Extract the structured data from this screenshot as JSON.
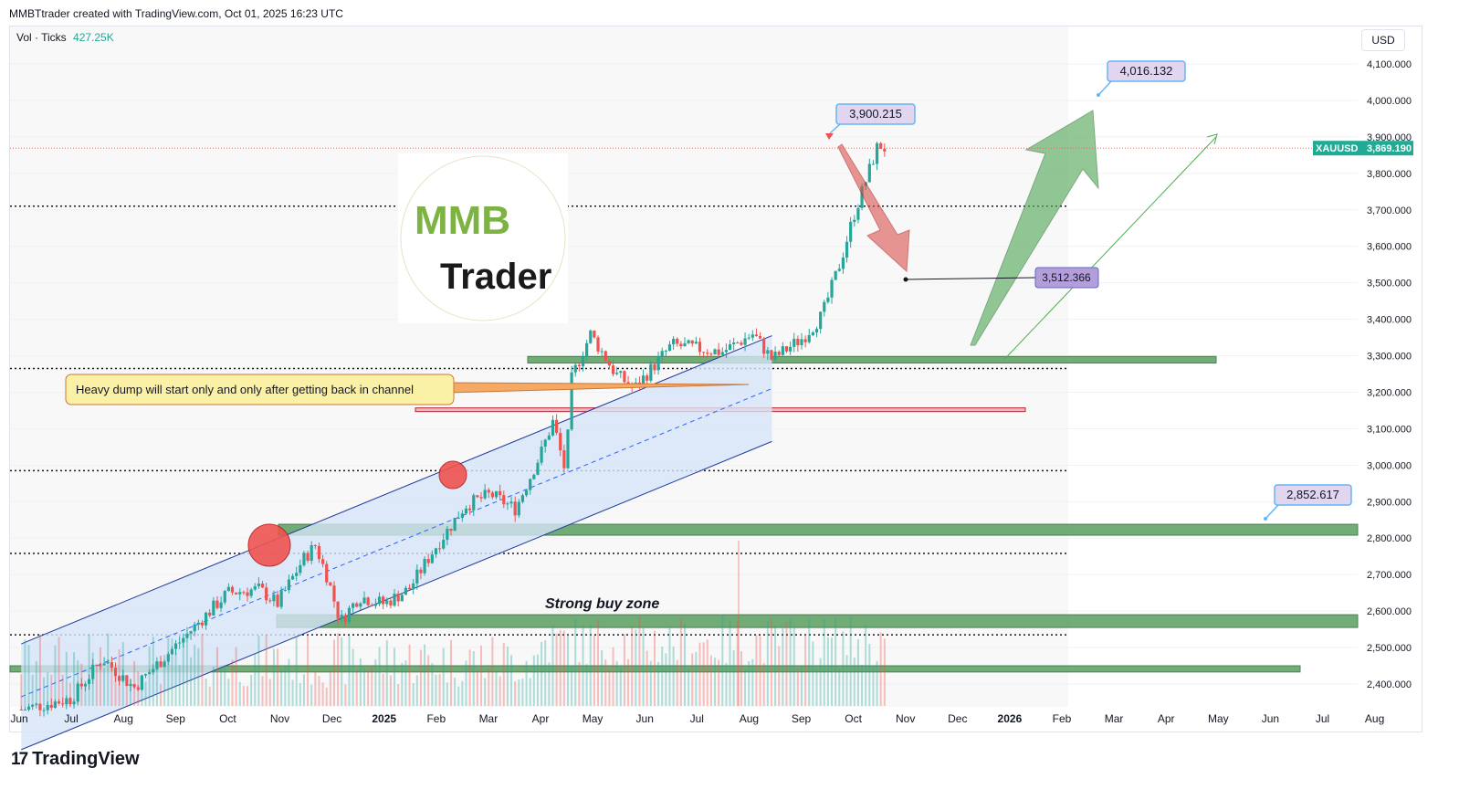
{
  "header": {
    "caption": "MMBTtrader created with TradingView.com, Oct 01, 2025 16:23 UTC"
  },
  "volume_legend": {
    "label": "Vol · Ticks",
    "value": "427.25K"
  },
  "price_axis": {
    "currency": "USD",
    "symbol": "XAUUSD",
    "last_price": "3,869.190"
  },
  "annotations": {
    "callout": "Heavy dump will start only and only after getting back in channel",
    "buy_zone": "Strong buy zone",
    "label_top": "3,900.215",
    "label_target_up": "4,016.132",
    "label_target_down": "3,512.366",
    "label_target_low": "2,852.617"
  },
  "logo": {
    "letters": "MMB",
    "word": "Trader"
  },
  "brand": {
    "text": "TradingView",
    "mark": "17"
  },
  "colors": {
    "up": "#26a69a",
    "down": "#ef5350",
    "zone": "#5a9e5f",
    "channel": "#bbd3f2",
    "axis_badge": "#22ab94",
    "label_fill": "#e1d5ef",
    "label_border": "#64b5f6"
  },
  "chart_data": {
    "type": "candlestick",
    "symbol": "XAUUSD",
    "ylim": [
      2350,
      4150
    ],
    "yticks": [
      2400,
      2500,
      2600,
      2700,
      2800,
      2900,
      3000,
      3100,
      3200,
      3300,
      3400,
      3500,
      3600,
      3700,
      3800,
      3900,
      4000,
      4100
    ],
    "ytick_labels": [
      "2,400.000",
      "2,500.000",
      "2,600.000",
      "2,700.000",
      "2,800.000",
      "2,900.000",
      "3,000.000",
      "3,100.000",
      "3,200.000",
      "3,300.000",
      "3,400.000",
      "3,500.000",
      "3,600.000",
      "3,700.000",
      "3,800.000",
      "3,900.000",
      "4,000.000",
      "4,100.000"
    ],
    "xtick_labels": [
      "Jun",
      "Jul",
      "Aug",
      "Sep",
      "Oct",
      "Nov",
      "Dec",
      "2025",
      "Feb",
      "Mar",
      "Apr",
      "May",
      "Jun",
      "Jul",
      "Aug",
      "Sep",
      "Oct",
      "Nov",
      "Dec",
      "2026",
      "Feb",
      "Mar",
      "Apr",
      "May",
      "Jun",
      "Jul",
      "Aug"
    ],
    "price_path": [
      [
        2024.42,
        2330
      ],
      [
        2024.5,
        2360
      ],
      [
        2024.55,
        2470
      ],
      [
        2024.6,
        2390
      ],
      [
        2024.67,
        2510
      ],
      [
        2024.75,
        2650
      ],
      [
        2024.8,
        2660
      ],
      [
        2024.83,
        2620
      ],
      [
        2024.87,
        2740
      ],
      [
        2024.89,
        2780
      ],
      [
        2024.91,
        2690
      ],
      [
        2024.93,
        2570
      ],
      [
        2024.96,
        2640
      ],
      [
        2025.0,
        2620
      ],
      [
        2025.04,
        2660
      ],
      [
        2025.08,
        2770
      ],
      [
        2025.13,
        2890
      ],
      [
        2025.17,
        2920
      ],
      [
        2025.21,
        2880
      ],
      [
        2025.25,
        3030
      ],
      [
        2025.27,
        3120
      ],
      [
        2025.29,
        2980
      ],
      [
        2025.3,
        3240
      ],
      [
        2025.33,
        3360
      ],
      [
        2025.37,
        3250
      ],
      [
        2025.4,
        3210
      ],
      [
        2025.46,
        3330
      ],
      [
        2025.54,
        3310
      ],
      [
        2025.59,
        3360
      ],
      [
        2025.62,
        3290
      ],
      [
        2025.67,
        3350
      ],
      [
        2025.7,
        3410
      ],
      [
        2025.73,
        3560
      ],
      [
        2025.75,
        3680
      ],
      [
        2025.77,
        3780
      ],
      [
        2025.79,
        3880
      ],
      [
        2025.8,
        3869
      ]
    ],
    "horizontal_levels": [
      3710,
      3265,
      2985,
      2758,
      2535
    ],
    "zones": [
      {
        "from": 3280,
        "to": 3298
      },
      {
        "from": 3147,
        "to": 3157
      },
      {
        "from": 2808,
        "to": 2838
      },
      {
        "from": 2555,
        "to": 2590
      },
      {
        "from": 2433,
        "to": 2450
      }
    ],
    "channel": {
      "upper": [
        [
          2024.42,
          2510
        ],
        [
          2025.62,
          3355
        ]
      ],
      "lower": [
        [
          2024.42,
          2220
        ],
        [
          2025.62,
          3065
        ]
      ]
    },
    "markers": [
      {
        "label": "3,900.215",
        "x": 2025.8,
        "y": 3900.215
      },
      {
        "label": "4,016.132",
        "x": 2026.36,
        "y": 4016.132
      },
      {
        "label": "3,512.366",
        "x": 2025.97,
        "y": 3512.366
      },
      {
        "label": "2,852.617",
        "x": 2026.7,
        "y": 2852.617
      }
    ],
    "volume_last": "427.25K",
    "last_price": 3869.19
  }
}
